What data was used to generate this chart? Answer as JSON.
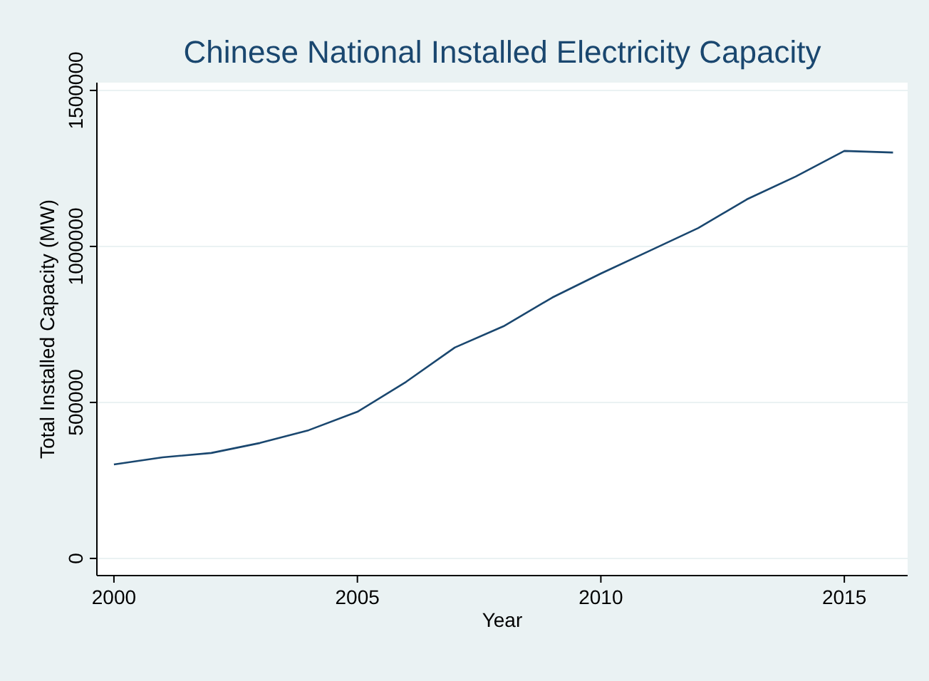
{
  "chart_data": {
    "type": "line",
    "title": "Chinese National Installed Electricity Capacity",
    "xlabel": "Year",
    "ylabel": "Total Installed Capacity (MW)",
    "x": [
      2000,
      2001,
      2002,
      2003,
      2004,
      2005,
      2006,
      2007,
      2008,
      2009,
      2010,
      2011,
      2012,
      2013,
      2014,
      2015,
      2016
    ],
    "series": [
      {
        "color": "#1a476f",
        "values": [
          301000,
          324000,
          338000,
          370000,
          411000,
          470000,
          566000,
          676000,
          744000,
          836000,
          913000,
          986000,
          1059000,
          1151000,
          1224000,
          1306000,
          1301000
        ]
      }
    ],
    "xlim": [
      1999.65,
      2016.3
    ],
    "xticks": [
      2000,
      2005,
      2010,
      2015
    ],
    "ylim": [
      -55000,
      1525000
    ],
    "yticks": [
      0,
      500000,
      1000000,
      1500000
    ],
    "grid": "y",
    "marker": "none",
    "line_style": "solid"
  }
}
